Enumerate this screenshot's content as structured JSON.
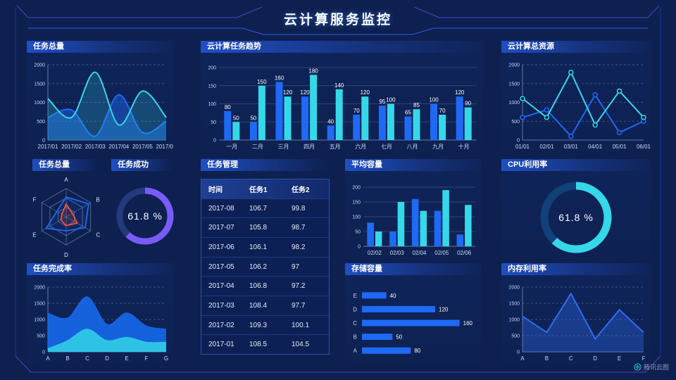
{
  "page": {
    "title": "云计算服务监控",
    "watermark": "腾讯云图"
  },
  "colors": {
    "blue": "#1e6af5",
    "cyan": "#35d8e8",
    "purple": "#7a5af8",
    "red": "#ff4d30",
    "frame_blue": "#2b5be8",
    "frame_purple": "#4b42c8",
    "background": "#0d2050"
  },
  "panels": {
    "task_total_line": {
      "title": "任务总量",
      "chart_data": {
        "type": "line",
        "smooth": true,
        "x": [
          "2017/01",
          "2017/02",
          "2017/03",
          "2017/04",
          "2017/05",
          "2017/06"
        ],
        "ylim": [
          0,
          2000
        ],
        "yticks": [
          0,
          500,
          1000,
          1500,
          2000
        ],
        "xfs": 7,
        "series": [
          {
            "color": "#1e6af5",
            "values": [
              600,
              800,
              100,
              1200,
              200,
              500
            ],
            "area": 0.45
          },
          {
            "color": "#35d8e8",
            "values": [
              1100,
              600,
              1800,
              400,
              1300,
              600
            ],
            "area": 0.22
          }
        ]
      }
    },
    "cloud_task_trend": {
      "title": "云计算任务趋势",
      "chart_data": {
        "type": "bar",
        "categories": [
          "一月",
          "二月",
          "三月",
          "四月",
          "五月",
          "六月",
          "七月",
          "八月",
          "九月",
          "十月"
        ],
        "ylim": [
          0,
          200
        ],
        "yticks": [
          0,
          50,
          100,
          150,
          200
        ],
        "labels": true,
        "series": [
          {
            "color": "#1e6af5",
            "values": [
              80,
              50,
              160,
              120,
              40,
              70,
              95,
              65,
              100,
              120
            ]
          },
          {
            "color": "#35d8e8",
            "values": [
              50,
              150,
              120,
              180,
              140,
              120,
              100,
              85,
              70,
              90
            ]
          }
        ]
      }
    },
    "cloud_resource": {
      "title": "云计算总资源",
      "chart_data": {
        "type": "line",
        "smooth": false,
        "markers": true,
        "x": [
          "01/01",
          "02/01",
          "03/01",
          "04/01",
          "05/01",
          "06/01"
        ],
        "ylim": [
          0,
          2000
        ],
        "yticks": [
          0,
          500,
          1000,
          1500,
          2000
        ],
        "xfs": 7,
        "series": [
          {
            "color": "#1e6af5",
            "values": [
              600,
              800,
              100,
              1200,
              200,
              500
            ]
          },
          {
            "color": "#35d8e8",
            "values": [
              1100,
              600,
              1800,
              400,
              1300,
              600
            ]
          }
        ]
      }
    },
    "task_total_radar": {
      "title": "任务总量",
      "chart_data": {
        "type": "radar",
        "axes": [
          "A",
          "B",
          "C",
          "D",
          "E",
          "F"
        ],
        "max": 100,
        "series": [
          {
            "color": "#1e6af5",
            "values": [
              70,
              92,
              78,
              50,
              82,
              38
            ],
            "fill": 0.1
          },
          {
            "color": "#ff4d30",
            "values": [
              45,
              25,
              45,
              32,
              22,
              18
            ],
            "fill": 0.15
          }
        ]
      }
    },
    "task_success": {
      "title": "任务成功",
      "chart_data": {
        "type": "donut",
        "percent": 61.8,
        "label": "61.8 %",
        "color": "#7a5af8",
        "track": "#243a7d"
      }
    },
    "task_table": {
      "title": "任务管理",
      "headers": [
        "时间",
        "任务1",
        "任务2"
      ],
      "rows": [
        [
          "2017-08",
          "106.7",
          "99.8"
        ],
        [
          "2017-07",
          "105.8",
          "98.7"
        ],
        [
          "2017-06",
          "106.1",
          "98.2"
        ],
        [
          "2017-05",
          "106.2",
          "97"
        ],
        [
          "2017-04",
          "106.8",
          "97.2"
        ],
        [
          "2017-03",
          "108.4",
          "97.7"
        ],
        [
          "2017-02",
          "109.3",
          "100.1"
        ],
        [
          "2017-01",
          "108.5",
          "104.5"
        ]
      ]
    },
    "avg_capacity": {
      "title": "平均容量",
      "chart_data": {
        "type": "bar",
        "categories": [
          "02/02",
          "02/03",
          "02/04",
          "02/05",
          "02/06"
        ],
        "ylim": [
          0,
          200
        ],
        "yticks": [
          0,
          50,
          100,
          150,
          200
        ],
        "labels": false,
        "series": [
          {
            "color": "#1e6af5",
            "values": [
              80,
              50,
              160,
              120,
              40
            ]
          },
          {
            "color": "#35d8e8",
            "values": [
              50,
              150,
              120,
              190,
              140
            ]
          }
        ]
      }
    },
    "cpu_usage": {
      "title": "CPU利用率",
      "chart_data": {
        "type": "donut",
        "percent": 61.8,
        "label": "61.8 %",
        "color": "#35d8e8",
        "track": "#12407a"
      }
    },
    "task_completion": {
      "title": "任务完成率",
      "chart_data": {
        "type": "line",
        "smooth": true,
        "x": [
          "A",
          "B",
          "C",
          "D",
          "E",
          "F",
          "G"
        ],
        "ylim": [
          0,
          2000
        ],
        "yticks": [
          0,
          500,
          1000,
          1500,
          2000
        ],
        "series": [
          {
            "color": "#1668ea",
            "values": [
              1200,
              1050,
              1700,
              850,
              1200,
              800,
              700
            ],
            "area": 0.9,
            "sw": 1
          },
          {
            "color": "#2fc8e6",
            "values": [
              100,
              350,
              700,
              350,
              450,
              300,
              300
            ],
            "area": 0.95,
            "sw": 1
          }
        ]
      }
    },
    "storage": {
      "title": "存储容量",
      "chart_data": {
        "type": "hbar",
        "categories": [
          "E",
          "D",
          "C",
          "B",
          "A"
        ],
        "values": [
          40,
          120,
          160,
          50,
          80
        ],
        "max": 165,
        "color": "#1e6af5",
        "labels": true
      }
    },
    "memory": {
      "title": "内存利用率",
      "chart_data": {
        "type": "line",
        "smooth": false,
        "x": [
          "A",
          "B",
          "C",
          "D",
          "E",
          "F"
        ],
        "ylim": [
          0,
          2000
        ],
        "yticks": [
          0,
          500,
          1000,
          1500,
          2000
        ],
        "series": [
          {
            "color": "#2f6df0",
            "values": [
              1100,
              600,
              1800,
              400,
              1300,
              600
            ],
            "area": 0.35,
            "sw": 2
          }
        ]
      }
    }
  }
}
